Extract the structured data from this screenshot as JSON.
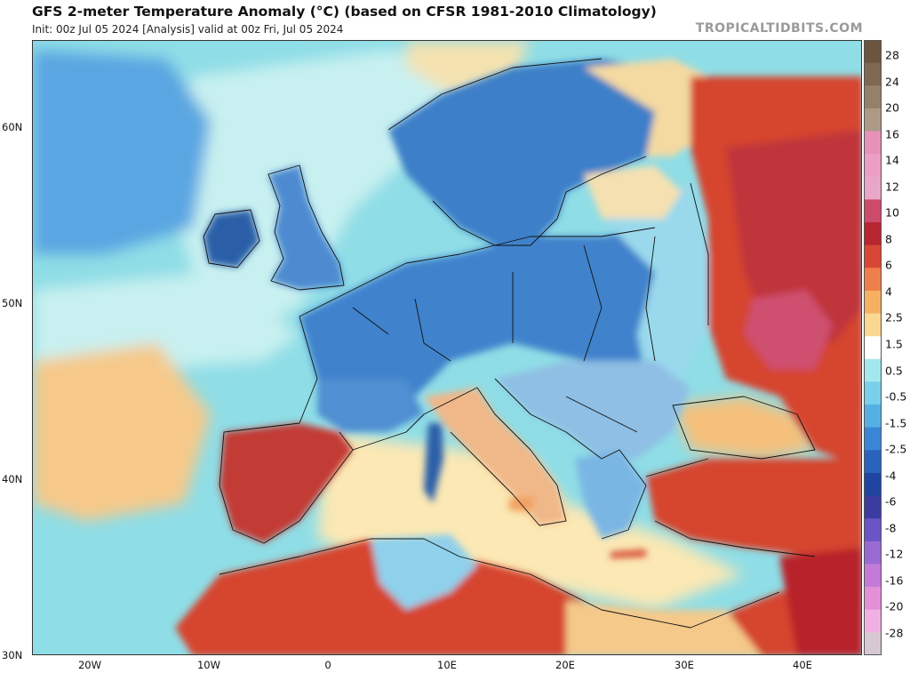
{
  "header": {
    "title": "GFS 2-meter Temperature Anomaly (°C) (based on CFSR 1981-2010 Climatology)",
    "subtitle": "Init: 00z Jul 05 2024   [Analysis]   valid at 00z Fri, Jul 05 2024",
    "credit": "TROPICALTIDBITS.COM"
  },
  "map": {
    "lat_labels": [
      "60N",
      "50N",
      "40N",
      "30N"
    ],
    "lon_labels": [
      "20W",
      "10W",
      "0",
      "10E",
      "20E",
      "30E",
      "40E"
    ],
    "colors": {
      "ocean_cool": "#8fdde6",
      "ocean_pale": "#c8f0f0",
      "ocean_warm": "#f6c98a",
      "cold_land": "#3e7fc8",
      "cold_deep": "#2b5fa8",
      "warm_land": "#d6452f",
      "hot_land": "#b8232a",
      "neutral": "#fbe8b4",
      "border": "#111111"
    }
  },
  "colorbar": {
    "labels": [
      "28",
      "24",
      "20",
      "16",
      "14",
      "12",
      "10",
      "8",
      "6",
      "4",
      "2.5",
      "1.5",
      "0.5",
      "-0.5",
      "-1.5",
      "-2.5",
      "-4",
      "-6",
      "-8",
      "-12",
      "-16",
      "-20",
      "-28"
    ],
    "colors": [
      "#6b5540",
      "#7f6853",
      "#958069",
      "#ad9a86",
      "#e891b8",
      "#ec9ec4",
      "#e8a6c8",
      "#cc4a6a",
      "#b82632",
      "#d84735",
      "#ef7f4a",
      "#f7b062",
      "#fbd890",
      "#ffffff",
      "#a2e8ec",
      "#78d0ea",
      "#55aee4",
      "#3a86d6",
      "#2a63bd",
      "#1f45a0",
      "#3c3ca0",
      "#6a55c4",
      "#9a6ad4",
      "#c47ad8",
      "#e390d8",
      "#f0b0e4",
      "#d8c8d4"
    ]
  }
}
